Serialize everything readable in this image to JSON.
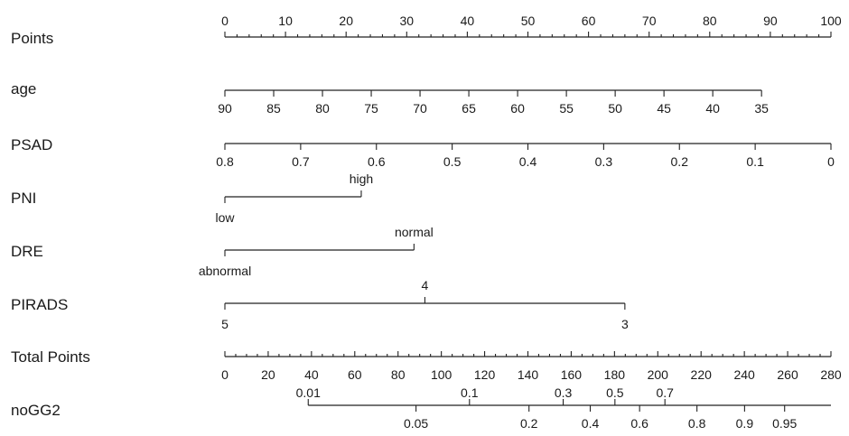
{
  "chart_data": {
    "type": "nomogram",
    "title": "",
    "points_range": [
      0,
      100
    ],
    "rows": [
      {
        "label": "Points",
        "type": "points",
        "labels_position": "above",
        "ticks": [
          {
            "value": 0,
            "label": "0"
          },
          {
            "value": 10,
            "label": "10"
          },
          {
            "value": 20,
            "label": "20"
          },
          {
            "value": 30,
            "label": "30"
          },
          {
            "value": 40,
            "label": "40"
          },
          {
            "value": 50,
            "label": "50"
          },
          {
            "value": 60,
            "label": "60"
          },
          {
            "value": 70,
            "label": "70"
          },
          {
            "value": 80,
            "label": "80"
          },
          {
            "value": 90,
            "label": "90"
          },
          {
            "value": 100,
            "label": "100"
          }
        ],
        "minor_step": 2
      },
      {
        "label": "age",
        "type": "continuous",
        "labels_position": "below",
        "ticks": [
          {
            "label": "90",
            "points": 0
          },
          {
            "label": "85",
            "points": 8.05
          },
          {
            "label": "80",
            "points": 16.1
          },
          {
            "label": "75",
            "points": 24.15
          },
          {
            "label": "70",
            "points": 32.2
          },
          {
            "label": "65",
            "points": 40.25
          },
          {
            "label": "60",
            "points": 48.3
          },
          {
            "label": "55",
            "points": 56.35
          },
          {
            "label": "50",
            "points": 64.4
          },
          {
            "label": "45",
            "points": 72.45
          },
          {
            "label": "40",
            "points": 80.5
          },
          {
            "label": "35",
            "points": 88.55
          }
        ]
      },
      {
        "label": "PSAD",
        "type": "continuous",
        "labels_position": "below",
        "ticks": [
          {
            "label": "0.8",
            "points": 0
          },
          {
            "label": "0.7",
            "points": 12.5
          },
          {
            "label": "0.6",
            "points": 25
          },
          {
            "label": "0.5",
            "points": 37.5
          },
          {
            "label": "0.4",
            "points": 50
          },
          {
            "label": "0.3",
            "points": 62.5
          },
          {
            "label": "0.2",
            "points": 75
          },
          {
            "label": "0.1",
            "points": 87.5
          },
          {
            "label": "0",
            "points": 100
          }
        ]
      },
      {
        "label": "PNI",
        "type": "categorical",
        "levels": [
          {
            "label": "low",
            "points": 0,
            "position": "below"
          },
          {
            "label": "high",
            "points": 22.5,
            "position": "above"
          }
        ]
      },
      {
        "label": "DRE",
        "type": "categorical",
        "levels": [
          {
            "label": "abnormal",
            "points": 0,
            "position": "below"
          },
          {
            "label": "normal",
            "points": 31.2,
            "position": "above"
          }
        ]
      },
      {
        "label": "PIRADS",
        "type": "categorical",
        "levels": [
          {
            "label": "5",
            "points": 0,
            "position": "below"
          },
          {
            "label": "4",
            "points": 33,
            "position": "above"
          },
          {
            "label": "3",
            "points": 66,
            "position": "below"
          }
        ]
      },
      {
        "label": "Total Points",
        "type": "total",
        "labels_position": "below",
        "range": [
          0,
          280
        ],
        "ticks": [
          {
            "value": 0,
            "label": "0"
          },
          {
            "value": 20,
            "label": "20"
          },
          {
            "value": 40,
            "label": "40"
          },
          {
            "value": 60,
            "label": "60"
          },
          {
            "value": 80,
            "label": "80"
          },
          {
            "value": 100,
            "label": "100"
          },
          {
            "value": 120,
            "label": "120"
          },
          {
            "value": 140,
            "label": "140"
          },
          {
            "value": 160,
            "label": "160"
          },
          {
            "value": 180,
            "label": "180"
          },
          {
            "value": 200,
            "label": "200"
          },
          {
            "value": 220,
            "label": "220"
          },
          {
            "value": 240,
            "label": "240"
          },
          {
            "value": 260,
            "label": "260"
          },
          {
            "value": 280,
            "label": "280"
          }
        ],
        "minor_step": 5
      },
      {
        "label": "noGG2",
        "type": "probability",
        "total_range": [
          38.5,
          280
        ],
        "ticks": [
          {
            "label": "0.01",
            "total": 38.5,
            "position": "above"
          },
          {
            "label": "0.05",
            "total": 88.3,
            "position": "below"
          },
          {
            "label": "0.1",
            "total": 113,
            "position": "above"
          },
          {
            "label": "0.2",
            "total": 140.5,
            "position": "below"
          },
          {
            "label": "0.3",
            "total": 156.3,
            "position": "above"
          },
          {
            "label": "0.4",
            "total": 168.8,
            "position": "below"
          },
          {
            "label": "0.5",
            "total": 180.2,
            "position": "above"
          },
          {
            "label": "0.6",
            "total": 191.6,
            "position": "below"
          },
          {
            "label": "0.7",
            "total": 203.3,
            "position": "above"
          },
          {
            "label": "0.8",
            "total": 218.1,
            "position": "below"
          },
          {
            "label": "0.9",
            "total": 240.1,
            "position": "below"
          },
          {
            "label": "0.95",
            "total": 258.6,
            "position": "below"
          }
        ]
      }
    ]
  }
}
